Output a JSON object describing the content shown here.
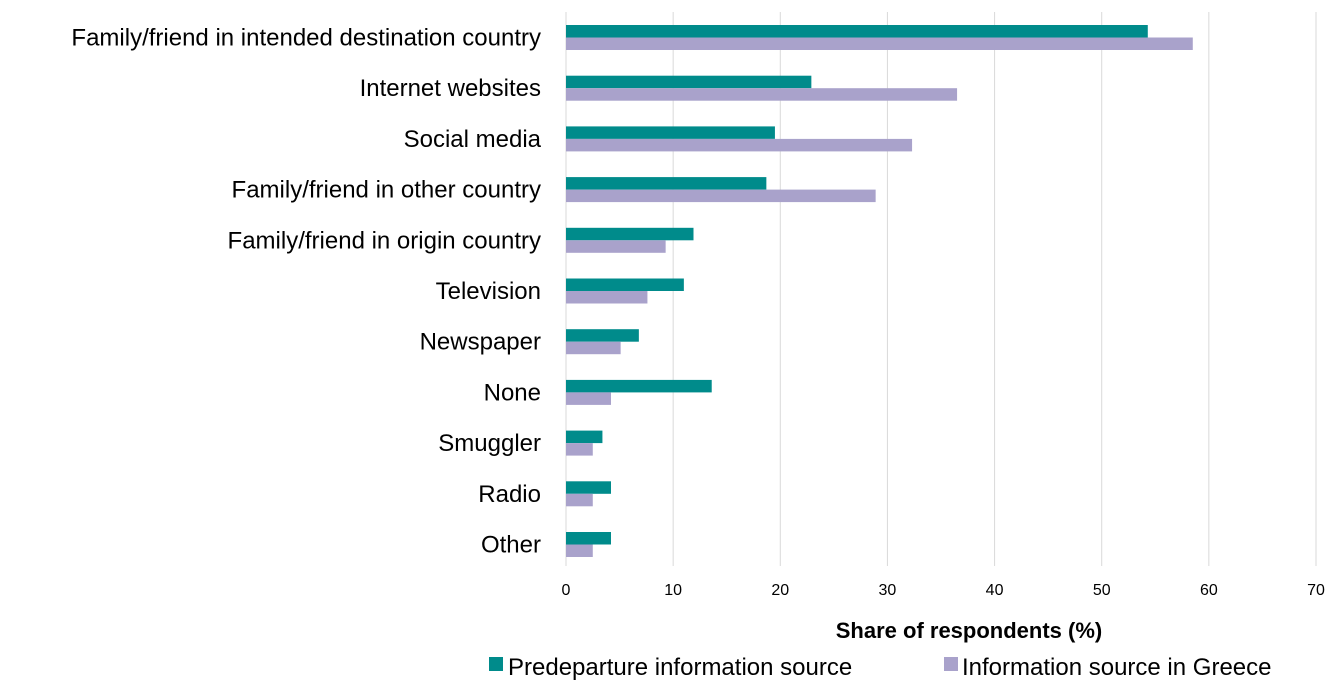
{
  "chart_data": {
    "type": "bar",
    "orientation": "horizontal",
    "categories": [
      "Family/friend in intended destination country",
      "Internet websites",
      "Social media",
      "Family/friend in other country",
      "Family/friend in origin country",
      "Television",
      "Newspaper",
      "None",
      "Smuggler",
      "Radio",
      "Other"
    ],
    "series": [
      {
        "name": "Predeparture information source",
        "color": "#008B8B",
        "values": [
          54.3,
          22.9,
          19.5,
          18.7,
          11.9,
          11.0,
          6.8,
          13.6,
          3.4,
          4.2,
          4.2
        ]
      },
      {
        "name": "Information source in Greece",
        "color": "#A9A2CB",
        "values": [
          58.5,
          36.5,
          32.3,
          28.9,
          9.3,
          7.6,
          5.1,
          4.2,
          2.5,
          2.5,
          2.5
        ]
      }
    ],
    "xlim": [
      0,
      70
    ],
    "xticks": [
      "0",
      "10",
      "20",
      "30",
      "40",
      "50",
      "60",
      "70"
    ],
    "xlabel": "Share of respondents (%)",
    "ylabel": "",
    "title": "",
    "grid": "vertical",
    "legend_position": "bottom"
  }
}
